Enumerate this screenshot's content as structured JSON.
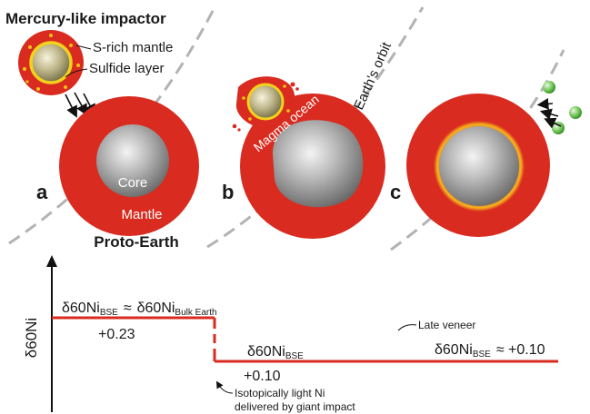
{
  "labels": {
    "impactor_title": "Mercury-like impactor",
    "s_rich_mantle": "S-rich mantle",
    "sulfide_layer": "Sulfide layer",
    "earths_orbit": "Earth's orbit",
    "magma_ocean": "Magma ocean",
    "core": "Core",
    "mantle": "Mantle",
    "proto_earth": "Proto-Earth",
    "panel_a": "a",
    "panel_b": "b",
    "panel_c": "c"
  },
  "graph": {
    "y_axis_label": "δ60Ni",
    "early_label_lhs": "δ60Ni",
    "early_label_lhs_sub": "BSE",
    "approx_symbol": "≈",
    "early_label_rhs": "δ60Ni",
    "early_label_rhs_sub": "Bulk Earth",
    "early_value": "+0.23",
    "mid_label": "δ60Ni",
    "mid_label_sub": "BSE",
    "mid_value": "+0.10",
    "late_veneer": "Late veneer",
    "late_label": "δ60Ni",
    "late_label_sub": "BSE",
    "late_value": "≈ +0.10",
    "giant_impact_note_1": "Isotopically light Ni",
    "giant_impact_note_2": "delivered by giant impact"
  },
  "colors": {
    "mantle_red": "#d92b1f",
    "core_gray": "#9a9a9a",
    "sulfide_yellow": "#f2d21b",
    "orbit_gray": "#b3b3b3",
    "late_veneer_green": "#5dbb46"
  },
  "icons": {
    "impact_arrows": "arrow-icon",
    "axis_arrow": "arrow-up-icon"
  }
}
